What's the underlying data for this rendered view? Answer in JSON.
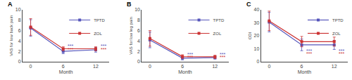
{
  "chart_data": [
    {
      "type": "line",
      "title": "A",
      "xlabel": "Month",
      "ylabel": "VAS for low back pain",
      "x": [
        0,
        6,
        12
      ],
      "xlim": [
        -1.5,
        14.5
      ],
      "xticks": [
        0,
        6,
        12
      ],
      "ylim": [
        0,
        10
      ],
      "yticks": [
        0,
        2,
        4,
        6,
        8,
        10
      ],
      "grid": false,
      "legend": "upper right",
      "series": [
        {
          "name": "TPTD",
          "color": "#5555bb",
          "marker": "square",
          "line_style": "solid",
          "values": [
            6.5,
            2.0,
            2.3
          ],
          "errors": [
            1.6,
            0.45,
            0.45
          ]
        },
        {
          "name": "ZOL",
          "color": "#cc3333",
          "marker": "square",
          "line_style": "solid",
          "values": [
            6.7,
            2.5,
            2.5
          ],
          "errors": [
            1.6,
            0.38,
            0.38
          ]
        }
      ],
      "annotations": [
        {
          "text": "***",
          "x": 6.6,
          "y": 3.0,
          "color": "#5555bb"
        },
        {
          "text": "***",
          "x": 6.6,
          "y": 2.3,
          "color": "#cc3333"
        },
        {
          "text": "***",
          "x": 12.6,
          "y": 3.0,
          "color": "#5555bb"
        },
        {
          "text": "***",
          "x": 12.6,
          "y": 2.3,
          "color": "#cc3333"
        }
      ]
    },
    {
      "type": "line",
      "title": "B",
      "xlabel": "Month",
      "ylabel": "VAS for low leg pain",
      "x": [
        0,
        6,
        12
      ],
      "xlim": [
        -1.5,
        14.5
      ],
      "xticks": [
        0,
        6,
        12
      ],
      "ylim": [
        0,
        10
      ],
      "yticks": [
        0,
        2,
        4,
        6,
        8,
        10
      ],
      "grid": false,
      "legend": "upper right",
      "series": [
        {
          "name": "TPTD",
          "color": "#5555bb",
          "marker": "square",
          "line_style": "solid",
          "values": [
            4.2,
            0.7,
            0.8
          ],
          "errors": [
            1.5,
            0.35,
            0.3
          ]
        },
        {
          "name": "ZOL",
          "color": "#cc3333",
          "marker": "square",
          "line_style": "solid",
          "values": [
            4.5,
            1.0,
            0.95
          ],
          "errors": [
            1.5,
            0.35,
            0.3
          ]
        }
      ],
      "annotations": [
        {
          "text": "***",
          "x": 6.6,
          "y": 1.4,
          "color": "#5555bb"
        },
        {
          "text": "***",
          "x": 6.6,
          "y": 0.9,
          "color": "#cc3333"
        },
        {
          "text": "***",
          "x": 12.6,
          "y": 1.4,
          "color": "#5555bb"
        },
        {
          "text": "***",
          "x": 12.6,
          "y": 0.9,
          "color": "#cc3333"
        }
      ]
    },
    {
      "type": "line",
      "title": "C",
      "xlabel": "Month",
      "ylabel": "ODI",
      "x": [
        0,
        6,
        12
      ],
      "xlim": [
        -1.5,
        14.5
      ],
      "xticks": [
        0,
        6,
        12
      ],
      "ylim": [
        0,
        40
      ],
      "yticks": [
        0,
        10,
        20,
        30,
        40
      ],
      "grid": false,
      "legend": "upper right",
      "series": [
        {
          "name": "TPTD",
          "color": "#5555bb",
          "marker": "square",
          "line_style": "solid",
          "values": [
            30.5,
            13.0,
            13.0
          ],
          "errors": [
            7.5,
            4.5,
            3.5
          ]
        },
        {
          "name": "ZOL",
          "color": "#cc3333",
          "marker": "square",
          "line_style": "solid",
          "values": [
            31.5,
            15.5,
            15.5
          ],
          "errors": [
            7.5,
            4.0,
            3.5
          ]
        }
      ],
      "annotations": [
        {
          "text": "***",
          "x": 6.6,
          "y": 8.6,
          "color": "#5555bb"
        },
        {
          "text": "***",
          "x": 6.6,
          "y": 6.2,
          "color": "#cc3333"
        },
        {
          "text": "***",
          "x": 12.6,
          "y": 8.6,
          "color": "#5555bb"
        },
        {
          "text": "***",
          "x": 12.6,
          "y": 6.2,
          "color": "#cc3333"
        }
      ]
    }
  ]
}
